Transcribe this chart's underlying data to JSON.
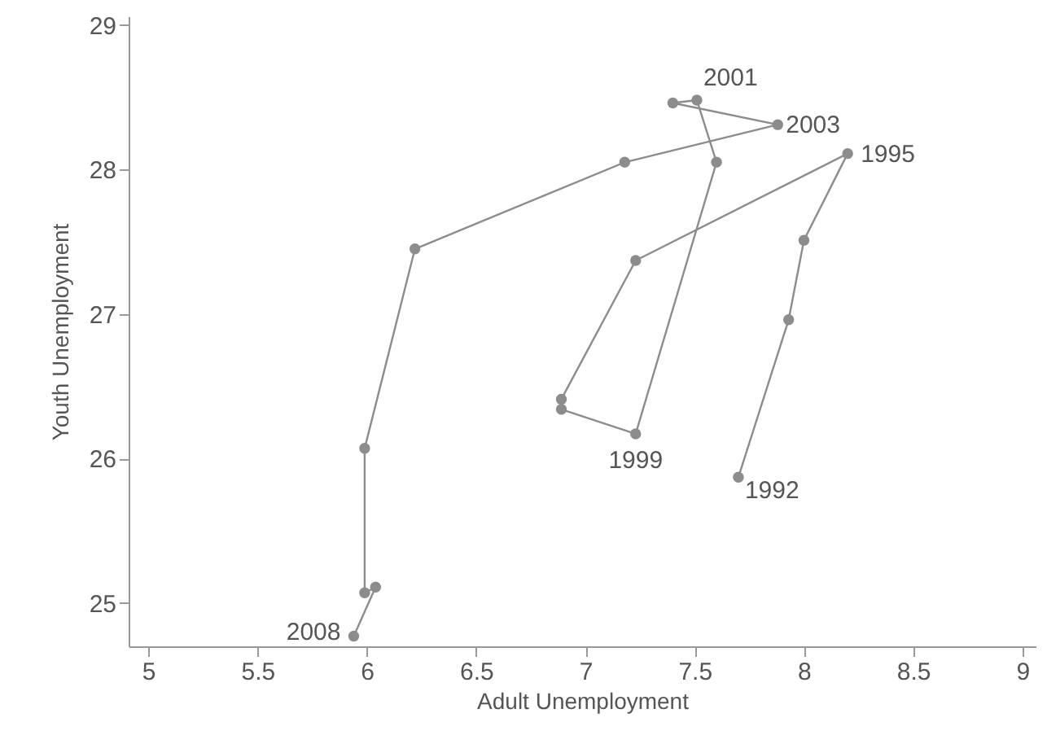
{
  "chart_data": {
    "type": "line",
    "xlabel": "Adult Unemployment",
    "ylabel": "Youth Unemployment",
    "series": [
      {
        "color": "#8c8c8c",
        "x": [
          7.7,
          7.93,
          8.0,
          8.2,
          7.23,
          6.89,
          6.89,
          7.23,
          7.6,
          7.51,
          7.4,
          7.88,
          7.18,
          6.22,
          5.99,
          5.99,
          6.04,
          5.94
        ],
        "values": [
          25.87,
          26.96,
          27.51,
          28.11,
          27.37,
          26.41,
          26.34,
          26.17,
          28.05,
          28.48,
          28.46,
          28.31,
          28.05,
          27.45,
          26.07,
          25.07,
          25.11,
          24.77
        ]
      }
    ],
    "annotations": [
      {
        "text": "1992",
        "x": 7.7,
        "y": 25.87
      },
      {
        "text": "1995",
        "x": 8.2,
        "y": 28.11
      },
      {
        "text": "1999",
        "x": 7.23,
        "y": 26.17
      },
      {
        "text": "2001",
        "x": 7.51,
        "y": 28.48
      },
      {
        "text": "2003",
        "x": 7.88,
        "y": 28.31
      },
      {
        "text": "2008",
        "x": 5.94,
        "y": 24.77
      }
    ],
    "xlim": [
      4.91,
      9.06
    ],
    "ylim": [
      24.7,
      29.06
    ],
    "xticks": [
      5,
      5.5,
      6,
      6.5,
      7,
      7.5,
      8,
      8.5,
      9
    ],
    "yticks": [
      25,
      26,
      27,
      28,
      29
    ],
    "marker": "circle",
    "line_style": "solid"
  }
}
